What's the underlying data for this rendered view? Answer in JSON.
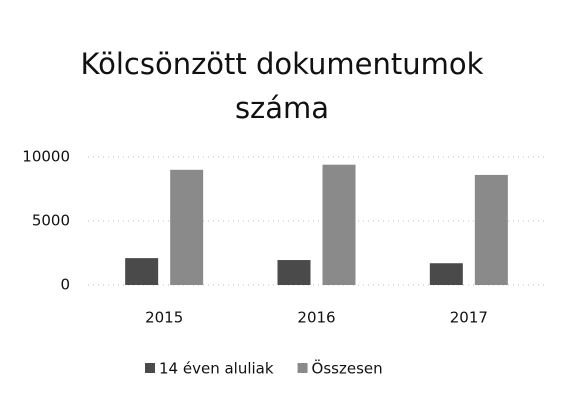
{
  "chart_data": {
    "type": "bar",
    "title": "Kölcsönzött dokumentumok száma",
    "categories": [
      "2015",
      "2016",
      "2017"
    ],
    "series": [
      {
        "name": "14 éven aluliak",
        "color": "#4a4a4a",
        "values": [
          2100,
          1950,
          1700
        ]
      },
      {
        "name": "Összesen",
        "color": "#8a8a8a",
        "values": [
          9000,
          9400,
          8600
        ]
      }
    ],
    "ylim": [
      0,
      10000
    ],
    "yticks": [
      0,
      5000,
      10000
    ],
    "grid": true
  }
}
